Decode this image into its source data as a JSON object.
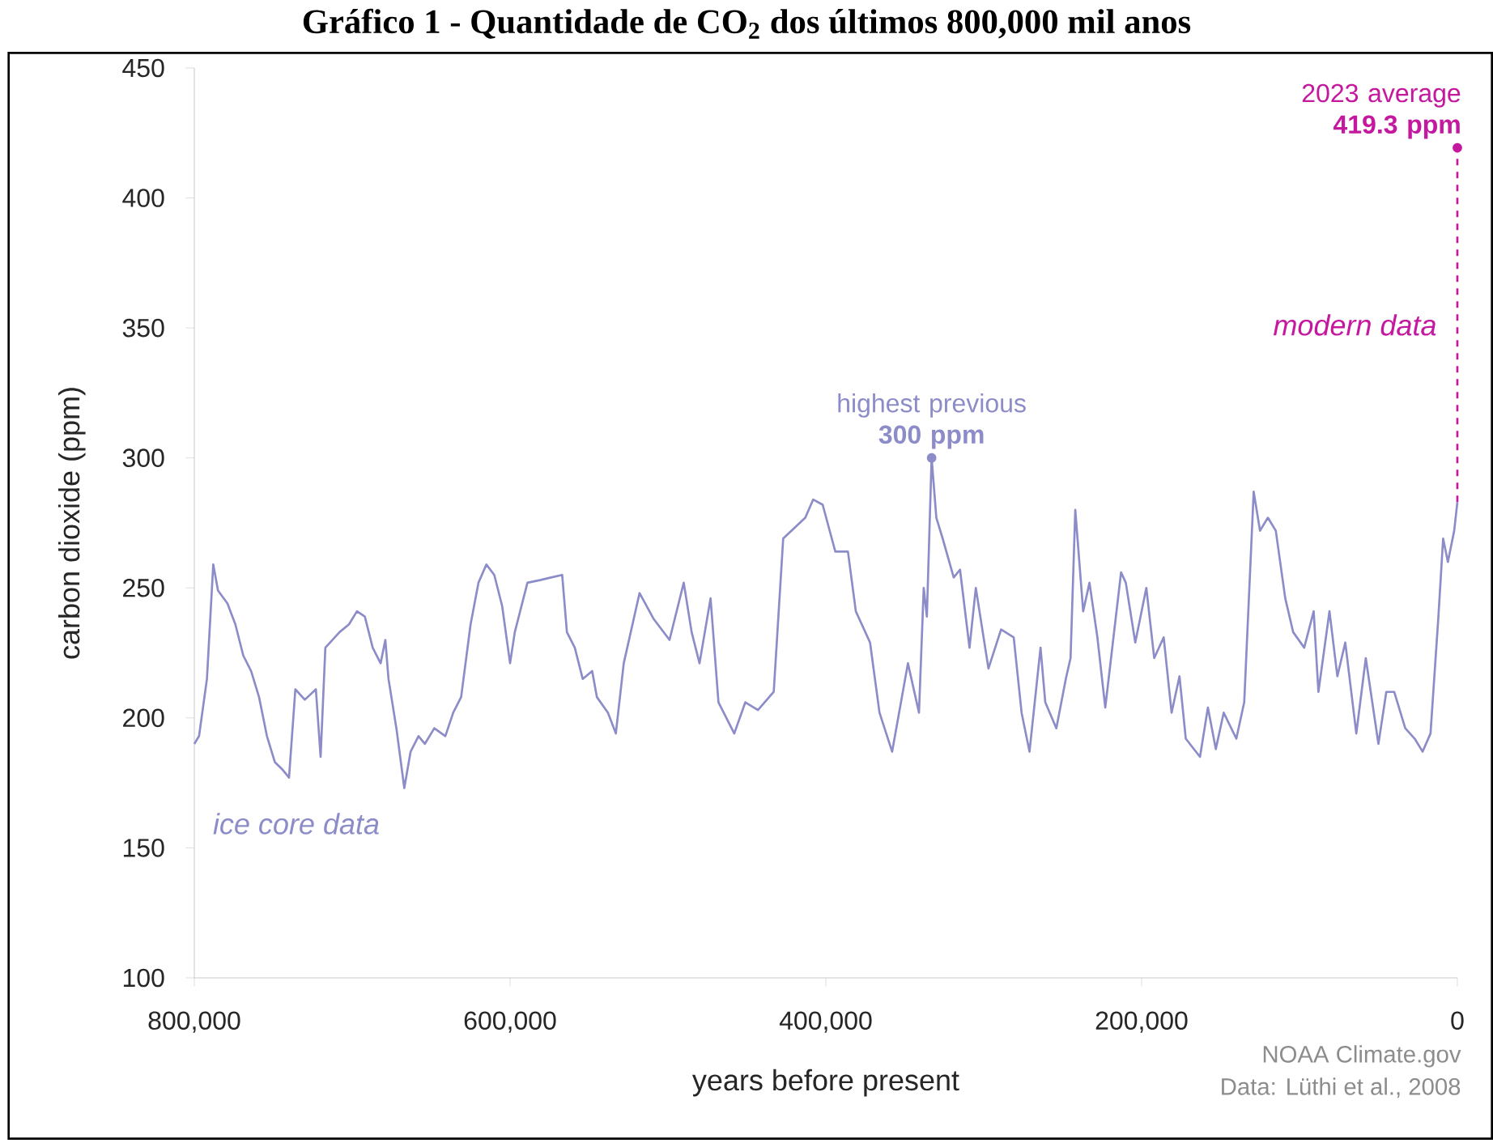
{
  "chart_data": {
    "type": "line",
    "title": "Gráfico 1 - Quantidade de CO$_{2}$ dos últimos 800,000 mil anos",
    "xlabel": "years before present",
    "ylabel": "carbon dioxide (ppm)",
    "xlim": [
      800000,
      0
    ],
    "ylim": [
      100,
      450
    ],
    "xticks": [
      {
        "value": 800000,
        "label": "800,000"
      },
      {
        "value": 600000,
        "label": "600,000"
      },
      {
        "value": 400000,
        "label": "400,000"
      },
      {
        "value": 200000,
        "label": "200,000"
      },
      0
    ],
    "yticks": [
      100,
      150,
      200,
      250,
      300,
      350,
      400,
      450
    ],
    "grid": false,
    "legend": false,
    "series": [
      {
        "name": "ice core data",
        "color": "#8c8cc8",
        "line_style": "solid",
        "x": [
          800000,
          797000,
          792000,
          788000,
          785000,
          779000,
          774000,
          769000,
          764000,
          759000,
          754000,
          749000,
          744000,
          740000,
          736000,
          730000,
          723000,
          720000,
          717000,
          708000,
          702000,
          697000,
          692000,
          687000,
          682000,
          679000,
          677000,
          672000,
          667000,
          663000,
          658000,
          654000,
          648000,
          641000,
          636000,
          631000,
          625000,
          620000,
          615000,
          610000,
          605000,
          600000,
          597000,
          589000,
          581000,
          574000,
          567000,
          564000,
          559000,
          554000,
          548000,
          545000,
          538000,
          533000,
          528000,
          518000,
          509000,
          499000,
          490000,
          485000,
          480000,
          473000,
          468000,
          458000,
          451000,
          443000,
          433000,
          427000,
          413000,
          408000,
          402000,
          394000,
          386000,
          381000,
          372000,
          366000,
          358000,
          353000,
          348000,
          341000,
          338000,
          336000,
          333000,
          330000,
          326000,
          319000,
          315000,
          309000,
          305000,
          297000,
          289000,
          281000,
          276000,
          271000,
          264000,
          261000,
          254000,
          248000,
          245000,
          242000,
          237000,
          233000,
          228000,
          223000,
          213000,
          210000,
          204000,
          197000,
          192000,
          186000,
          181000,
          176000,
          172000,
          163000,
          158000,
          153000,
          148000,
          140000,
          135000,
          129000,
          125000,
          120000,
          115000,
          109000,
          104000,
          97000,
          91000,
          88000,
          81000,
          76000,
          71000,
          64000,
          58000,
          50000,
          45000,
          40000,
          33000,
          27000,
          22000,
          17000,
          12000,
          9000,
          6000,
          2000,
          0
        ],
        "values": [
          190,
          193,
          215,
          259,
          249,
          244,
          236,
          224,
          218,
          208,
          193,
          183,
          180,
          177,
          211,
          207,
          211,
          185,
          227,
          233,
          236,
          241,
          239,
          227,
          221,
          230,
          215,
          196,
          173,
          187,
          193,
          190,
          196,
          193,
          202,
          208,
          236,
          252,
          259,
          255,
          243,
          221,
          233,
          252,
          253,
          254,
          255,
          233,
          227,
          215,
          218,
          208,
          202,
          194,
          221,
          248,
          238,
          230,
          252,
          233,
          221,
          246,
          206,
          194,
          206,
          203,
          210,
          269,
          277,
          284,
          282,
          264,
          264,
          241,
          229,
          202,
          187,
          204,
          221,
          202,
          250,
          239,
          300,
          277,
          269,
          254,
          257,
          227,
          250,
          219,
          234,
          231,
          202,
          187,
          227,
          206,
          196,
          215,
          223,
          280,
          241,
          252,
          231,
          204,
          256,
          252,
          229,
          250,
          223,
          231,
          202,
          216,
          192,
          185,
          204,
          188,
          202,
          192,
          206,
          287,
          272,
          277,
          272,
          246,
          233,
          227,
          241,
          210,
          241,
          216,
          229,
          194,
          223,
          190,
          210,
          210,
          196,
          192,
          187,
          194,
          239,
          269,
          260,
          272,
          283
        ]
      },
      {
        "name": "modern data",
        "color": "#c4199f",
        "line_style": "dashed",
        "x": [
          0,
          0
        ],
        "values": [
          283,
          419.3
        ]
      }
    ],
    "annotations": [
      {
        "text": "highest previous **300 ppm**",
        "x": 333000,
        "y": 300
      },
      {
        "text": "2023 average **419.3 ppm**",
        "x": 0,
        "y": 419.3
      },
      "NOAA Climate.gov",
      "Data: Lüthi et al., 2008"
    ]
  }
}
